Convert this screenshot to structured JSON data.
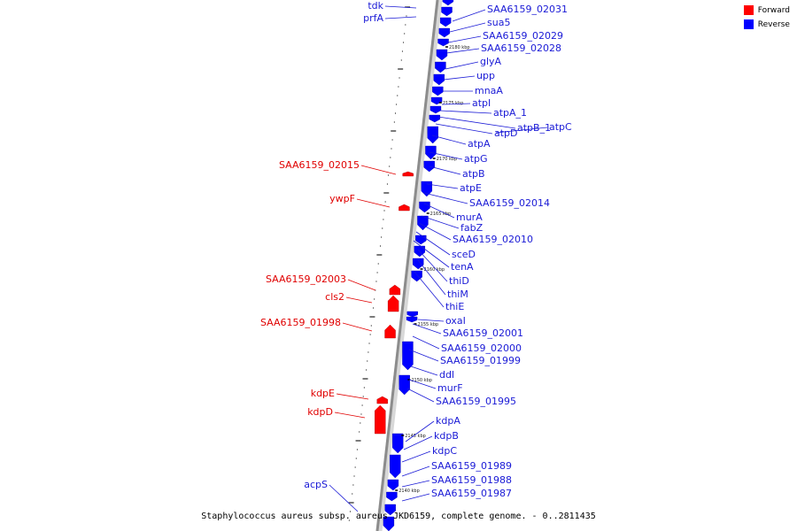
{
  "colors": {
    "forward": "#ff0000",
    "reverse": "#0000ff",
    "backbone": "#a9a9a9",
    "label_reverse": "#1a1ad6",
    "label_forward": "#e00000"
  },
  "legend": {
    "items": [
      {
        "label": "Forward",
        "color": "#ff0000"
      },
      {
        "label": "Reverse",
        "color": "#0000ff"
      }
    ]
  },
  "caption": "Staphylococcus aureus subsp. aureus JKD6159, complete genome. - 0..2811435",
  "ticks": [
    "2180 kbp",
    "2175 kbp",
    "2170 kbp",
    "2165 kbp",
    "2160 kbp",
    "2155 kbp",
    "2150 kbp",
    "2145 kbp",
    "2140 kbp"
  ],
  "labels": {
    "left": [
      "tdk",
      "prfA",
      "SAA6159_02015",
      "ywpF",
      "SAA6159_02003",
      "cls2",
      "SAA6159_01998",
      "kdpE",
      "kdpD",
      "acpS"
    ],
    "right": [
      "SAA6159_02031",
      "sua5",
      "SAA6159_02029",
      "SAA6159_02028",
      "glyA",
      "upp",
      "mnaA",
      "atpI",
      "atpA_1",
      "atpB_1",
      "atpC",
      "atpD",
      "atpA",
      "atpG",
      "atpB",
      "atpE",
      "SAA6159_02014",
      "murA",
      "fabZ",
      "SAA6159_02010",
      "sceD",
      "tenA",
      "thiD",
      "thiM",
      "thiE",
      "oxaI",
      "SAA6159_02001",
      "SAA6159_02000",
      "SAA6159_01999",
      "ddl",
      "murF",
      "SAA6159_01995",
      "kdpA",
      "kdpB",
      "kdpC",
      "SAA6159_01989",
      "SAA6159_01988",
      "SAA6159_01987"
    ]
  }
}
